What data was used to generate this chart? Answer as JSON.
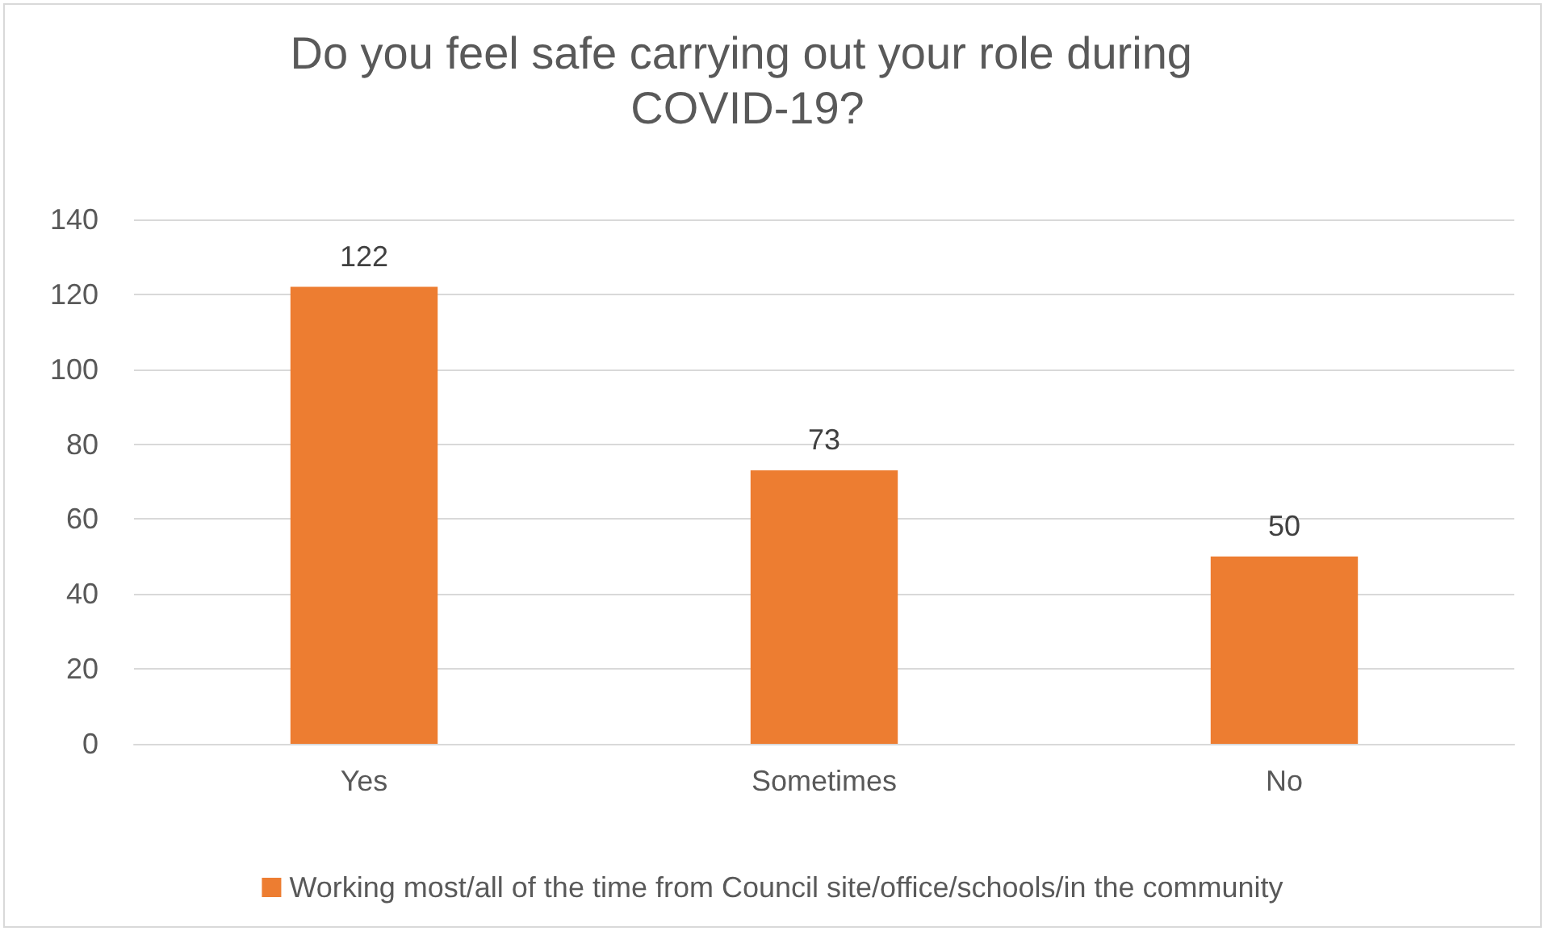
{
  "chart_data": {
    "type": "bar",
    "title": "Do you feel safe carrying out your role during COVID-19?",
    "categories": [
      "Yes",
      "Sometimes",
      "No"
    ],
    "series": [
      {
        "name": "Working most/all of the time from Council site/office/schools/in the community",
        "color": "#ed7d31",
        "values": [
          122,
          73,
          50
        ]
      }
    ],
    "ylim": [
      0,
      140
    ],
    "yticks": [
      0,
      20,
      40,
      60,
      80,
      100,
      120,
      140
    ],
    "grid": "y",
    "legend": "bottom",
    "data_labels": true
  }
}
